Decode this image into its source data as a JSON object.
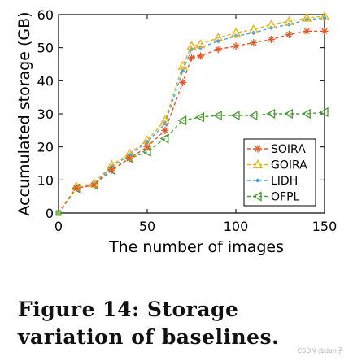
{
  "chart_data": {
    "type": "line",
    "xlabel": "The number of images",
    "ylabel": "Accumulated storage (GB)",
    "xlim": [
      0,
      150
    ],
    "ylim": [
      0,
      60
    ],
    "xticks": [
      0,
      50,
      100,
      150
    ],
    "yticks": [
      0,
      10,
      20,
      30,
      40,
      50,
      60
    ],
    "grid": false,
    "legend_position": "lower-right",
    "series": [
      {
        "name": "SOIRA",
        "color": "#e05a2b",
        "marker": "asterisk",
        "x": [
          0,
          10,
          20,
          30,
          40,
          50,
          60,
          70,
          75,
          80,
          90,
          100,
          110,
          120,
          130,
          140,
          150
        ],
        "y": [
          0,
          7.5,
          8.5,
          13,
          16.5,
          20,
          25,
          39.5,
          47,
          47.5,
          49.5,
          50.5,
          51.5,
          52.5,
          54,
          55,
          55
        ]
      },
      {
        "name": "GOIRA",
        "color": "#e6b41f",
        "marker": "triangle-up",
        "x": [
          0,
          10,
          20,
          30,
          40,
          50,
          60,
          70,
          75,
          80,
          90,
          100,
          110,
          120,
          130,
          140,
          150
        ],
        "y": [
          0,
          8,
          9,
          14.5,
          18,
          22,
          28,
          44.5,
          50.5,
          51,
          53,
          54.5,
          55.5,
          57,
          58,
          59,
          59.5
        ]
      },
      {
        "name": "LIDH",
        "color": "#4aa3df",
        "marker": "dot",
        "x": [
          0,
          10,
          20,
          30,
          40,
          50,
          60,
          70,
          75,
          80,
          90,
          100,
          110,
          120,
          130,
          140,
          150
        ],
        "y": [
          0,
          7.5,
          8.5,
          14,
          17.5,
          21.5,
          27,
          43,
          49.5,
          50,
          52,
          53.5,
          54.5,
          56,
          57,
          58.5,
          59
        ]
      },
      {
        "name": "OFPL",
        "color": "#4f9a3a",
        "marker": "triangle-left",
        "x": [
          0,
          10,
          20,
          30,
          40,
          50,
          60,
          70,
          80,
          90,
          100,
          110,
          120,
          130,
          140,
          150
        ],
        "y": [
          0,
          7.5,
          8.5,
          13,
          16.5,
          18.5,
          22.5,
          28,
          29,
          29.5,
          29.5,
          29.5,
          30,
          30,
          30,
          30.5
        ]
      }
    ]
  },
  "caption": "Figure 14: Storage variation of baselines.",
  "watermark": "CSDN @dan子"
}
